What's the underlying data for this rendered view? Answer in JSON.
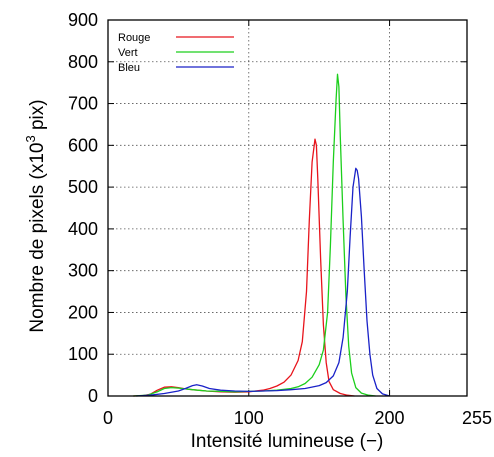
{
  "chart_data": {
    "type": "line",
    "title": "",
    "xlabel": "Intensité lumineuse (−)",
    "ylabel": {
      "main": "Nombre de pixels (x10",
      "sup": "3",
      "tail": " pix)"
    },
    "xlim": [
      0,
      255
    ],
    "ylim": [
      0,
      900
    ],
    "x_ticks": [
      0,
      100,
      200,
      255
    ],
    "y_ticks": [
      0,
      100,
      200,
      300,
      400,
      500,
      600,
      700,
      800,
      900
    ],
    "grid": true,
    "legend_position": "top-left",
    "series": [
      {
        "name": "Rouge",
        "color": "#e8141c",
        "points": [
          [
            18,
            0
          ],
          [
            25,
            1
          ],
          [
            30,
            4
          ],
          [
            35,
            14
          ],
          [
            40,
            21
          ],
          [
            45,
            22
          ],
          [
            50,
            20
          ],
          [
            55,
            17
          ],
          [
            60,
            15
          ],
          [
            70,
            12
          ],
          [
            80,
            10
          ],
          [
            90,
            9
          ],
          [
            100,
            10
          ],
          [
            110,
            14
          ],
          [
            115,
            18
          ],
          [
            120,
            24
          ],
          [
            125,
            33
          ],
          [
            130,
            50
          ],
          [
            135,
            85
          ],
          [
            138,
            130
          ],
          [
            141,
            250
          ],
          [
            143,
            420
          ],
          [
            145,
            560
          ],
          [
            147,
            615
          ],
          [
            148,
            600
          ],
          [
            149,
            520
          ],
          [
            151,
            330
          ],
          [
            153,
            170
          ],
          [
            155,
            80
          ],
          [
            157,
            35
          ],
          [
            160,
            15
          ],
          [
            165,
            6
          ],
          [
            170,
            2
          ],
          [
            175,
            0
          ]
        ]
      },
      {
        "name": "Vert",
        "color": "#1ccf1c",
        "points": [
          [
            18,
            0
          ],
          [
            28,
            2
          ],
          [
            35,
            10
          ],
          [
            40,
            18
          ],
          [
            45,
            20
          ],
          [
            50,
            19
          ],
          [
            55,
            17
          ],
          [
            60,
            15
          ],
          [
            70,
            12
          ],
          [
            80,
            11
          ],
          [
            90,
            10
          ],
          [
            100,
            11
          ],
          [
            110,
            12
          ],
          [
            120,
            14
          ],
          [
            130,
            18
          ],
          [
            135,
            22
          ],
          [
            140,
            30
          ],
          [
            145,
            45
          ],
          [
            150,
            75
          ],
          [
            153,
            110
          ],
          [
            156,
            200
          ],
          [
            158,
            360
          ],
          [
            160,
            560
          ],
          [
            162,
            710
          ],
          [
            163,
            770
          ],
          [
            164,
            740
          ],
          [
            165,
            620
          ],
          [
            167,
            420
          ],
          [
            169,
            240
          ],
          [
            171,
            120
          ],
          [
            173,
            55
          ],
          [
            176,
            20
          ],
          [
            180,
            7
          ],
          [
            185,
            2
          ],
          [
            190,
            0
          ]
        ]
      },
      {
        "name": "Bleu",
        "color": "#1a22c8",
        "points": [
          [
            20,
            0
          ],
          [
            30,
            2
          ],
          [
            40,
            6
          ],
          [
            50,
            12
          ],
          [
            55,
            18
          ],
          [
            60,
            25
          ],
          [
            63,
            27
          ],
          [
            67,
            24
          ],
          [
            72,
            18
          ],
          [
            80,
            14
          ],
          [
            90,
            12
          ],
          [
            100,
            11
          ],
          [
            110,
            12
          ],
          [
            120,
            13
          ],
          [
            130,
            15
          ],
          [
            140,
            18
          ],
          [
            150,
            25
          ],
          [
            155,
            32
          ],
          [
            160,
            48
          ],
          [
            164,
            80
          ],
          [
            167,
            140
          ],
          [
            170,
            250
          ],
          [
            172,
            380
          ],
          [
            174,
            500
          ],
          [
            176,
            545
          ],
          [
            177,
            540
          ],
          [
            178,
            520
          ],
          [
            180,
            430
          ],
          [
            182,
            300
          ],
          [
            184,
            180
          ],
          [
            186,
            100
          ],
          [
            188,
            50
          ],
          [
            191,
            18
          ],
          [
            195,
            5
          ],
          [
            200,
            0
          ]
        ]
      }
    ]
  }
}
